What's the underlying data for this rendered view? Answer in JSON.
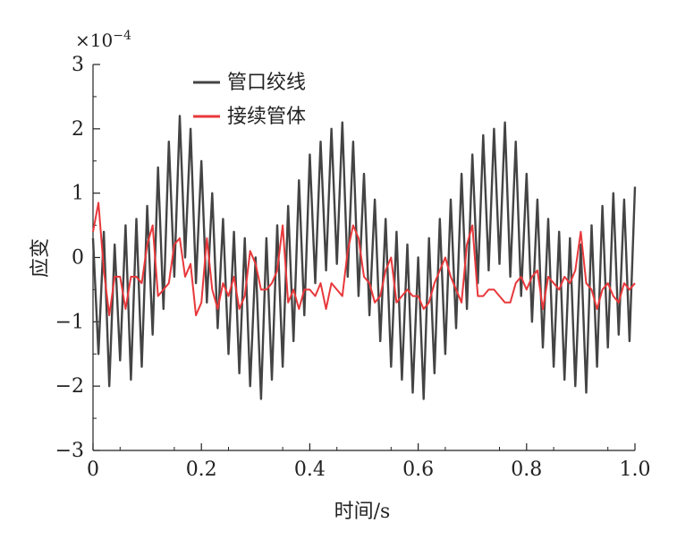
{
  "chart_data": {
    "type": "line",
    "title": "",
    "xlabel": "时间/s",
    "ylabel": "应变",
    "y_multiplier": "×10",
    "y_multiplier_exp": "−4",
    "xlim": [
      0,
      1.0
    ],
    "ylim": [
      -3,
      3
    ],
    "x_ticks": [
      0,
      0.2,
      0.4,
      0.6,
      0.8,
      1.0
    ],
    "x_tick_labels": [
      "0",
      "0.2",
      "0.4",
      "0.6",
      "0.8",
      "1.0"
    ],
    "y_ticks": [
      -3,
      -2,
      -1,
      0,
      1,
      2,
      3
    ],
    "y_tick_labels": [
      "−3",
      "−2",
      "−1",
      "0",
      "1",
      "2",
      "3"
    ],
    "grid": false,
    "legend_position": "top-left",
    "series": [
      {
        "name": "管口绞线",
        "color": "#444444",
        "x": [
          0.0,
          0.01,
          0.02,
          0.03,
          0.04,
          0.05,
          0.06,
          0.07,
          0.08,
          0.09,
          0.1,
          0.11,
          0.12,
          0.13,
          0.14,
          0.15,
          0.16,
          0.17,
          0.18,
          0.19,
          0.2,
          0.21,
          0.22,
          0.23,
          0.24,
          0.25,
          0.26,
          0.27,
          0.28,
          0.29,
          0.3,
          0.31,
          0.32,
          0.33,
          0.34,
          0.35,
          0.36,
          0.37,
          0.38,
          0.39,
          0.4,
          0.41,
          0.42,
          0.43,
          0.44,
          0.45,
          0.46,
          0.47,
          0.48,
          0.49,
          0.5,
          0.51,
          0.52,
          0.53,
          0.54,
          0.55,
          0.56,
          0.57,
          0.58,
          0.59,
          0.6,
          0.61,
          0.62,
          0.63,
          0.64,
          0.65,
          0.66,
          0.67,
          0.68,
          0.69,
          0.7,
          0.71,
          0.72,
          0.73,
          0.74,
          0.75,
          0.76,
          0.77,
          0.78,
          0.79,
          0.8,
          0.81,
          0.82,
          0.83,
          0.84,
          0.85,
          0.86,
          0.87,
          0.88,
          0.89,
          0.9,
          0.91,
          0.92,
          0.93,
          0.94,
          0.95,
          0.96,
          0.97,
          0.98,
          0.99,
          1.0
        ],
        "values": [
          0.3,
          -1.5,
          0.4,
          -2.0,
          0.2,
          -1.6,
          0.5,
          -1.9,
          0.6,
          -1.7,
          0.8,
          -1.2,
          1.4,
          -0.8,
          1.8,
          -0.3,
          2.2,
          0.0,
          2.0,
          -0.4,
          1.5,
          -0.7,
          1.0,
          -1.1,
          0.6,
          -1.5,
          0.4,
          -1.8,
          0.3,
          -2.0,
          0.0,
          -2.2,
          0.3,
          -1.9,
          0.5,
          -1.7,
          0.8,
          -1.3,
          1.2,
          -0.9,
          1.6,
          -0.4,
          1.8,
          -0.2,
          2.0,
          -0.1,
          2.1,
          -0.3,
          1.8,
          -0.6,
          1.3,
          -0.9,
          0.9,
          -1.3,
          0.6,
          -1.7,
          0.4,
          -1.9,
          0.2,
          -2.1,
          0.0,
          -2.2,
          0.3,
          -1.8,
          0.6,
          -1.5,
          0.9,
          -1.1,
          1.3,
          -0.8,
          1.6,
          -0.4,
          1.9,
          -0.2,
          2.0,
          -0.1,
          2.1,
          -0.3,
          1.8,
          -0.6,
          1.3,
          -1.0,
          0.9,
          -1.4,
          0.6,
          -1.7,
          0.4,
          -1.9,
          0.3,
          -2.0,
          0.2,
          -2.1,
          0.5,
          -1.7,
          0.8,
          -1.4,
          1.0,
          -1.2,
          0.9,
          -1.3,
          1.1
        ]
      },
      {
        "name": "接续管体",
        "color": "#e8383b",
        "x": [
          0.0,
          0.01,
          0.02,
          0.03,
          0.04,
          0.05,
          0.06,
          0.07,
          0.08,
          0.09,
          0.1,
          0.11,
          0.12,
          0.13,
          0.14,
          0.15,
          0.16,
          0.17,
          0.18,
          0.19,
          0.2,
          0.21,
          0.22,
          0.23,
          0.24,
          0.25,
          0.26,
          0.27,
          0.28,
          0.29,
          0.3,
          0.31,
          0.32,
          0.33,
          0.34,
          0.35,
          0.36,
          0.37,
          0.38,
          0.39,
          0.4,
          0.41,
          0.42,
          0.43,
          0.44,
          0.45,
          0.46,
          0.47,
          0.48,
          0.49,
          0.5,
          0.51,
          0.52,
          0.53,
          0.54,
          0.55,
          0.56,
          0.57,
          0.58,
          0.59,
          0.6,
          0.61,
          0.62,
          0.63,
          0.64,
          0.65,
          0.66,
          0.67,
          0.68,
          0.69,
          0.7,
          0.71,
          0.72,
          0.73,
          0.74,
          0.75,
          0.76,
          0.77,
          0.78,
          0.79,
          0.8,
          0.81,
          0.82,
          0.83,
          0.84,
          0.85,
          0.86,
          0.87,
          0.88,
          0.89,
          0.9,
          0.91,
          0.92,
          0.93,
          0.94,
          0.95,
          0.96,
          0.97,
          0.98,
          0.99,
          1.0
        ],
        "values": [
          0.4,
          0.85,
          -0.2,
          -0.9,
          -0.3,
          -0.3,
          -0.8,
          -0.3,
          -0.3,
          -0.4,
          0.2,
          0.5,
          -0.6,
          -0.5,
          -0.4,
          0.2,
          0.3,
          -0.3,
          -0.1,
          -0.9,
          -0.7,
          0.3,
          -0.5,
          -0.8,
          -0.4,
          -0.6,
          -0.3,
          -0.8,
          -0.6,
          0.1,
          -0.1,
          -0.5,
          -0.5,
          -0.4,
          -0.2,
          0.5,
          -0.7,
          -0.5,
          -0.8,
          -0.5,
          -0.5,
          -0.6,
          -0.4,
          -0.8,
          -0.4,
          -0.5,
          -0.6,
          0.1,
          0.5,
          0.3,
          -0.3,
          -0.4,
          -0.7,
          -0.6,
          -0.2,
          0.0,
          -0.7,
          -0.6,
          -0.5,
          -0.6,
          -0.6,
          -0.8,
          -0.7,
          -0.4,
          -0.2,
          0.0,
          -0.3,
          -0.5,
          -0.7,
          0.2,
          0.5,
          -0.6,
          -0.6,
          -0.5,
          -0.5,
          -0.6,
          -0.7,
          -0.7,
          -0.4,
          -0.3,
          -0.5,
          -0.3,
          -0.2,
          -0.8,
          -0.3,
          -0.4,
          -0.5,
          -0.3,
          -0.4,
          -0.2,
          0.4,
          -0.4,
          -0.5,
          -0.8,
          -0.5,
          -0.4,
          -0.6,
          -0.7,
          -0.4,
          -0.5,
          -0.4
        ]
      }
    ]
  }
}
